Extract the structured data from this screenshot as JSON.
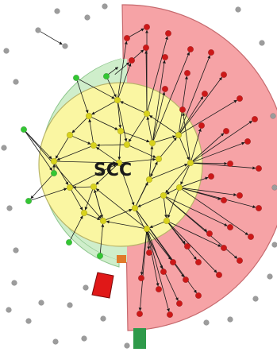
{
  "diagram": {
    "center_label": "SCC",
    "colors": {
      "background": "#ffffff",
      "out_region": "#f6a3a6",
      "out_region_stroke": "#c66a6e",
      "in_region": "#cfeecb",
      "in_region_stroke": "#8cc58c",
      "core_region": "#faf6a2",
      "core_region_stroke": "#b8b46a",
      "scc_node": "#d8d21c",
      "out_node": "#cc1818",
      "in_node": "#33c633",
      "disconnected_node": "#9c9c9c",
      "tube": "#e07a2a",
      "tendril_out": "#e01818",
      "tendril_in": "#2e9a4a",
      "edge": "#1a1a1a",
      "label": "#1a1a1a"
    },
    "regions": [
      {
        "name": "out-component",
        "color": "out_region"
      },
      {
        "name": "in-component",
        "color": "in_region"
      },
      {
        "name": "scc-core",
        "color": "core_region"
      }
    ]
  }
}
